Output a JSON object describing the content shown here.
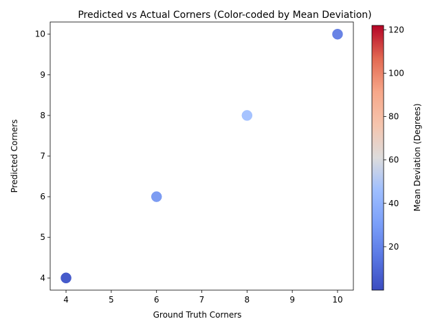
{
  "chart_data": {
    "type": "scatter",
    "title": "Predicted vs Actual Corners (Color-coded by Mean Deviation)",
    "xlabel": "Ground Truth Corners",
    "ylabel": "Predicted Corners",
    "xlim": [
      3.65,
      10.35
    ],
    "ylim": [
      3.7,
      10.3
    ],
    "xticks": [
      4,
      5,
      6,
      7,
      8,
      9,
      10
    ],
    "yticks": [
      4,
      5,
      6,
      7,
      8,
      9,
      10
    ],
    "grid": false,
    "points": [
      {
        "x": 4,
        "y": 4,
        "c": 2
      },
      {
        "x": 4,
        "y": 4,
        "c": 5
      },
      {
        "x": 6,
        "y": 6,
        "c": 25
      },
      {
        "x": 8,
        "y": 8,
        "c": 45
      },
      {
        "x": 10,
        "y": 10,
        "c": 15
      }
    ],
    "colorbar": {
      "label": "Mean Deviation (Degrees)",
      "cmap": "coolwarm",
      "range": [
        0,
        122
      ],
      "ticks": [
        20,
        40,
        60,
        80,
        100,
        120
      ]
    }
  }
}
